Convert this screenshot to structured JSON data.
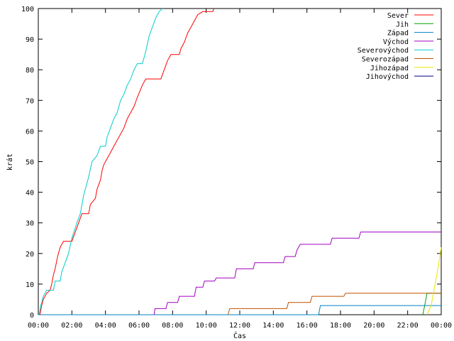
{
  "chart_data": {
    "type": "line",
    "step": true,
    "xlabel": "Čas",
    "ylabel": "krát",
    "xlim": [
      0,
      24
    ],
    "ylim": [
      0,
      100
    ],
    "xticks": [
      {
        "v": 0,
        "label": "00:00"
      },
      {
        "v": 2,
        "label": "02:00"
      },
      {
        "v": 4,
        "label": "04:00"
      },
      {
        "v": 6,
        "label": "06:00"
      },
      {
        "v": 8,
        "label": "08:00"
      },
      {
        "v": 10,
        "label": "10:00"
      },
      {
        "v": 12,
        "label": "12:00"
      },
      {
        "v": 14,
        "label": "14:00"
      },
      {
        "v": 16,
        "label": "16:00"
      },
      {
        "v": 18,
        "label": "18:00"
      },
      {
        "v": 20,
        "label": "20:00"
      },
      {
        "v": 22,
        "label": "22:00"
      },
      {
        "v": 24,
        "label": "00:00"
      }
    ],
    "yticks": [
      {
        "v": 0,
        "label": "0"
      },
      {
        "v": 10,
        "label": "10"
      },
      {
        "v": 20,
        "label": "20"
      },
      {
        "v": 30,
        "label": "30"
      },
      {
        "v": 40,
        "label": "40"
      },
      {
        "v": 50,
        "label": "50"
      },
      {
        "v": 60,
        "label": "60"
      },
      {
        "v": 70,
        "label": "70"
      },
      {
        "v": 80,
        "label": "80"
      },
      {
        "v": 90,
        "label": "90"
      },
      {
        "v": 100,
        "label": "100"
      }
    ],
    "grid": false,
    "legend_position": "top-right",
    "series": [
      {
        "name": "Sever",
        "color": "#ff0000",
        "points": [
          [
            0.1,
            0
          ],
          [
            0.2,
            3
          ],
          [
            0.3,
            5
          ],
          [
            0.5,
            7
          ],
          [
            0.7,
            8
          ],
          [
            0.8,
            10
          ],
          [
            0.9,
            13
          ],
          [
            1.0,
            15
          ],
          [
            1.15,
            19
          ],
          [
            1.3,
            22
          ],
          [
            1.5,
            24
          ],
          [
            2.0,
            24
          ],
          [
            2.2,
            27
          ],
          [
            2.4,
            30
          ],
          [
            2.6,
            33
          ],
          [
            3.0,
            33
          ],
          [
            3.1,
            36
          ],
          [
            3.4,
            38
          ],
          [
            3.5,
            41
          ],
          [
            3.7,
            44
          ],
          [
            3.8,
            47
          ],
          [
            3.9,
            49
          ],
          [
            4.1,
            51
          ],
          [
            4.3,
            53
          ],
          [
            4.5,
            55
          ],
          [
            4.7,
            57
          ],
          [
            4.9,
            59
          ],
          [
            5.1,
            61
          ],
          [
            5.3,
            64
          ],
          [
            5.5,
            66
          ],
          [
            5.7,
            68
          ],
          [
            5.9,
            71
          ],
          [
            6.05,
            73
          ],
          [
            6.2,
            75
          ],
          [
            6.4,
            77
          ],
          [
            7.3,
            77
          ],
          [
            7.5,
            80
          ],
          [
            7.7,
            83
          ],
          [
            7.9,
            85
          ],
          [
            8.4,
            85
          ],
          [
            8.5,
            87
          ],
          [
            8.7,
            89
          ],
          [
            8.9,
            92
          ],
          [
            9.1,
            94
          ],
          [
            9.3,
            96
          ],
          [
            9.5,
            98
          ],
          [
            9.8,
            99
          ],
          [
            10.4,
            99
          ],
          [
            10.45,
            100
          ]
        ]
      },
      {
        "name": "Jih",
        "color": "#00a000",
        "points": [
          [
            22.9,
            0
          ],
          [
            23.05,
            4
          ],
          [
            23.15,
            7
          ],
          [
            24,
            7
          ]
        ]
      },
      {
        "name": "Západ",
        "color": "#0080c0",
        "points": [
          [
            0,
            0
          ],
          [
            16.7,
            0
          ],
          [
            16.8,
            3
          ],
          [
            24,
            3
          ]
        ]
      },
      {
        "name": "Východ",
        "color": "#a000c0",
        "points": [
          [
            6.9,
            0
          ],
          [
            6.95,
            2
          ],
          [
            7.6,
            2
          ],
          [
            7.7,
            4
          ],
          [
            8.3,
            4
          ],
          [
            8.4,
            6
          ],
          [
            9.3,
            6
          ],
          [
            9.4,
            9
          ],
          [
            9.8,
            9
          ],
          [
            9.9,
            11
          ],
          [
            10.5,
            11
          ],
          [
            10.6,
            12
          ],
          [
            11.7,
            12
          ],
          [
            11.8,
            15
          ],
          [
            12.8,
            15
          ],
          [
            12.9,
            17
          ],
          [
            14.6,
            17
          ],
          [
            14.7,
            19
          ],
          [
            15.3,
            19
          ],
          [
            15.4,
            21
          ],
          [
            15.6,
            23
          ],
          [
            17.4,
            23
          ],
          [
            17.5,
            25
          ],
          [
            19.1,
            25
          ],
          [
            19.2,
            27
          ],
          [
            24,
            27
          ]
        ]
      },
      {
        "name": "Severovýchod",
        "color": "#00cccc",
        "points": [
          [
            0.05,
            0
          ],
          [
            0.15,
            3
          ],
          [
            0.3,
            6
          ],
          [
            0.5,
            8
          ],
          [
            0.9,
            8
          ],
          [
            1.0,
            11
          ],
          [
            1.3,
            11
          ],
          [
            1.4,
            14
          ],
          [
            1.6,
            17
          ],
          [
            1.8,
            20
          ],
          [
            2.0,
            25
          ],
          [
            2.3,
            30
          ],
          [
            2.5,
            33
          ],
          [
            2.7,
            39
          ],
          [
            3.0,
            45
          ],
          [
            3.2,
            50
          ],
          [
            3.5,
            52
          ],
          [
            3.7,
            55
          ],
          [
            4.0,
            55
          ],
          [
            4.1,
            58
          ],
          [
            4.3,
            61
          ],
          [
            4.5,
            64
          ],
          [
            4.7,
            66
          ],
          [
            4.9,
            70
          ],
          [
            5.1,
            72
          ],
          [
            5.3,
            75
          ],
          [
            5.5,
            77
          ],
          [
            5.7,
            80
          ],
          [
            5.9,
            82
          ],
          [
            6.2,
            82
          ],
          [
            6.4,
            86
          ],
          [
            6.6,
            91
          ],
          [
            6.8,
            94
          ],
          [
            7.0,
            97
          ],
          [
            7.2,
            99
          ],
          [
            7.4,
            100
          ]
        ]
      },
      {
        "name": "Severozápad",
        "color": "#c05000",
        "points": [
          [
            11.3,
            0
          ],
          [
            11.4,
            2
          ],
          [
            14.8,
            2
          ],
          [
            14.9,
            4
          ],
          [
            16.2,
            4
          ],
          [
            16.3,
            6
          ],
          [
            18.2,
            6
          ],
          [
            18.3,
            7
          ],
          [
            24,
            7
          ]
        ]
      },
      {
        "name": "Jihozápad",
        "color": "#e8e800",
        "points": [
          [
            23.15,
            0
          ],
          [
            23.4,
            3
          ],
          [
            23.6,
            9
          ],
          [
            23.8,
            15
          ],
          [
            24,
            22
          ]
        ]
      },
      {
        "name": "Jihovýchod",
        "color": "#000080",
        "points": []
      }
    ]
  }
}
